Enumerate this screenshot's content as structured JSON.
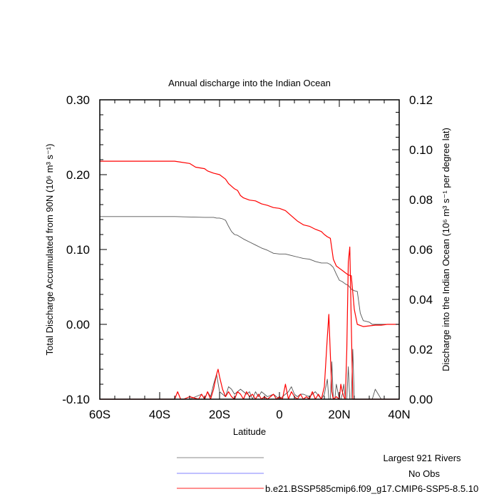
{
  "chart_data": {
    "type": "line",
    "title": "Annual discharge into the Indian Ocean",
    "xlabel": "Latitude",
    "ylabel_left": "Total Discharge Accumulated from 90N (10⁶ m³ s⁻¹)",
    "ylabel_right": "Discharge into the Indian Ocean (10⁶ m³ s⁻¹ per degree lat)",
    "xlim": [
      -60,
      40
    ],
    "ylim_left": [
      -0.1,
      0.3
    ],
    "ylim_right": [
      0.0,
      0.12
    ],
    "x_ticks": [
      {
        "value": -60,
        "label": "60S"
      },
      {
        "value": -40,
        "label": "40S"
      },
      {
        "value": -20,
        "label": "20S"
      },
      {
        "value": 0,
        "label": "0"
      },
      {
        "value": 20,
        "label": "20N"
      },
      {
        "value": 40,
        "label": "40N"
      }
    ],
    "y_left_ticks": [
      {
        "value": -0.1,
        "label": "-0.10"
      },
      {
        "value": 0.0,
        "label": "0.00"
      },
      {
        "value": 0.1,
        "label": "0.10"
      },
      {
        "value": 0.2,
        "label": "0.20"
      },
      {
        "value": 0.3,
        "label": "0.30"
      }
    ],
    "y_right_ticks": [
      {
        "value": 0.0,
        "label": "0.00"
      },
      {
        "value": 0.02,
        "label": "0.02"
      },
      {
        "value": 0.04,
        "label": "0.04"
      },
      {
        "value": 0.06,
        "label": "0.06"
      },
      {
        "value": 0.08,
        "label": "0.08"
      },
      {
        "value": 0.1,
        "label": "0.10"
      },
      {
        "value": 0.12,
        "label": "0.12"
      }
    ],
    "legend": [
      {
        "label": "Largest 921 Rivers",
        "color": "#888888"
      },
      {
        "label": "No Obs",
        "color": "#8080ff"
      },
      {
        "label": "b.e21.BSSP585cmip6.f09_g17.CMIP6-SSP5-8.5.10",
        "color": "#ff2020"
      }
    ],
    "legend_placement": "bottom",
    "series": [
      {
        "color": "#555555",
        "axis": "left",
        "x": [
          -60,
          -35,
          -25,
          -23,
          -22,
          -21,
          -20,
          -19,
          -18,
          -17,
          -16,
          -15,
          -14,
          -12,
          -10,
          -8,
          -6,
          -4,
          -2,
          0,
          2,
          4,
          6,
          8,
          10,
          12,
          14,
          15,
          16,
          16.5,
          17,
          18,
          19,
          20,
          21,
          22,
          23,
          24,
          24.5,
          25,
          26,
          27,
          28,
          29,
          30,
          31,
          32,
          34,
          36,
          38,
          40
        ],
        "y": [
          0.144,
          0.144,
          0.143,
          0.143,
          0.143,
          0.142,
          0.142,
          0.141,
          0.139,
          0.131,
          0.124,
          0.12,
          0.119,
          0.114,
          0.11,
          0.106,
          0.102,
          0.099,
          0.095,
          0.094,
          0.094,
          0.092,
          0.09,
          0.088,
          0.087,
          0.084,
          0.082,
          0.082,
          0.082,
          0.081,
          0.08,
          0.076,
          0.067,
          0.059,
          0.057,
          0.054,
          0.052,
          0.047,
          0.046,
          0.045,
          0.044,
          0.015,
          0.005,
          0.004,
          0.003,
          0.0,
          0.0,
          0.0,
          0.0,
          0.0,
          0.0
        ]
      },
      {
        "color": "#ff0000",
        "axis": "left",
        "x": [
          -60,
          -35,
          -30,
          -28,
          -25,
          -24,
          -22,
          -20,
          -18,
          -17,
          -15,
          -14,
          -13,
          -12,
          -10,
          -8,
          -6,
          -4,
          -2,
          0,
          2,
          4,
          6,
          8,
          10,
          12,
          14,
          15,
          16,
          17,
          18,
          19,
          20,
          21,
          22,
          23,
          24,
          25,
          26,
          28,
          30,
          32,
          34,
          36,
          38,
          40
        ],
        "y": [
          0.218,
          0.218,
          0.215,
          0.21,
          0.208,
          0.205,
          0.202,
          0.2,
          0.194,
          0.188,
          0.181,
          0.179,
          0.172,
          0.169,
          0.166,
          0.165,
          0.161,
          0.159,
          0.156,
          0.155,
          0.152,
          0.145,
          0.138,
          0.133,
          0.131,
          0.127,
          0.124,
          0.12,
          0.117,
          0.115,
          0.087,
          0.078,
          0.075,
          0.072,
          0.069,
          0.066,
          0.065,
          0.02,
          0.0,
          -0.003,
          -0.002,
          -0.001,
          -0.001,
          0.0,
          0.0,
          0.0
        ]
      },
      {
        "color": "#555555",
        "axis": "right",
        "x": [
          -60,
          -30,
          -26,
          -25,
          -24,
          -23,
          -22,
          -21,
          -20,
          -19,
          -18,
          -17,
          -16,
          -15,
          -14,
          -13,
          -12,
          -11,
          -10,
          -9,
          -8,
          -7,
          -6,
          -4,
          -2,
          0,
          1,
          2,
          3,
          4,
          5,
          6,
          7,
          8,
          10,
          12,
          14,
          15,
          16,
          16.5,
          17,
          17.5,
          18,
          18.5,
          19,
          20,
          20.5,
          21,
          21.5,
          22,
          22.5,
          23,
          23.5,
          24,
          24.5,
          25,
          26,
          28,
          30,
          31,
          32,
          34,
          36,
          40
        ],
        "y": [
          0.0,
          0.0,
          0.002,
          0.0,
          0.003,
          0.001,
          0.006,
          0.01,
          0.003,
          0.002,
          0.001,
          0.005,
          0.004,
          0.002,
          0.003,
          0.004,
          0.003,
          0.002,
          0.003,
          0.0,
          0.003,
          0.001,
          0.003,
          0.001,
          0.002,
          0.0,
          0.001,
          0.002,
          0.003,
          0.005,
          0.002,
          0.001,
          0.002,
          0.002,
          0.001,
          0.003,
          0.0,
          0.002,
          0.008,
          0.0,
          0.0,
          0.015,
          0.0,
          0.0,
          0.006,
          0.0,
          0.0,
          0.002,
          0.006,
          0.0,
          0.0,
          0.013,
          0.0,
          0.0,
          0.02,
          0.0,
          0.0,
          0.0,
          0.0,
          0.0,
          0.004,
          0.0,
          0.0,
          0.0
        ]
      },
      {
        "color": "#ff0000",
        "axis": "right",
        "x": [
          -60,
          -35,
          -34,
          -33,
          -32,
          -30,
          -27,
          -26,
          -25,
          -24,
          -23,
          -22,
          -21,
          -20.5,
          -20,
          -19,
          -18,
          -17,
          -16,
          -15,
          -14,
          -13,
          -12,
          -11,
          -10,
          -9,
          -8,
          -7,
          -6,
          -5,
          -4,
          -3,
          -2,
          -1,
          0,
          1,
          2,
          3,
          4,
          5,
          6,
          7,
          8,
          9,
          10,
          11,
          12,
          13,
          14,
          15,
          16,
          16.5,
          17,
          17.5,
          18,
          19,
          20,
          20.5,
          21,
          21.5,
          22,
          22.5,
          23,
          23.5,
          24,
          24.5,
          25,
          26,
          27,
          28,
          30,
          34,
          36,
          40
        ],
        "y": [
          0.0,
          0.0,
          0.003,
          0.0,
          0.0,
          0.001,
          0.0,
          0.002,
          0.0,
          0.003,
          0.0,
          0.004,
          0.01,
          0.012,
          0.009,
          0.004,
          0.001,
          0.003,
          0.001,
          0.0,
          0.003,
          0.002,
          0.0,
          0.003,
          0.001,
          0.002,
          0.0,
          0.002,
          0.0,
          0.001,
          0.0,
          0.001,
          0.002,
          0.0,
          0.001,
          0.0,
          0.006,
          0.0,
          0.003,
          0.001,
          0.0,
          0.002,
          0.0,
          0.001,
          0.0,
          0.003,
          0.0,
          0.002,
          0.0,
          0.005,
          0.025,
          0.034,
          0.018,
          0.003,
          0.0,
          0.001,
          0.0,
          0.006,
          0.003,
          0.001,
          0.0,
          0.02,
          0.055,
          0.061,
          0.03,
          0.0,
          0.0,
          0.0,
          0.0,
          0.0,
          0.0,
          0.0,
          0.0,
          0.0
        ]
      }
    ],
    "grid": false
  }
}
